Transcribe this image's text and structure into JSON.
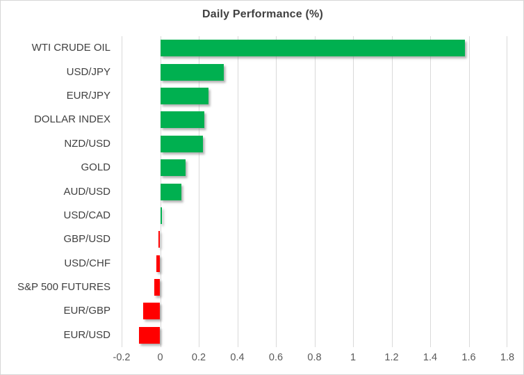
{
  "chart_data": {
    "type": "bar",
    "orientation": "horizontal",
    "title": "Daily Performance (%)",
    "categories": [
      "WTI CRUDE OIL",
      "USD/JPY",
      "EUR/JPY",
      "DOLLAR INDEX",
      "NZD/USD",
      "GOLD",
      "AUD/USD",
      "USD/CAD",
      "GBP/USD",
      "USD/CHF",
      "S&P 500 FUTURES",
      "EUR/GBP",
      "EUR/USD"
    ],
    "values": [
      1.58,
      0.33,
      0.25,
      0.23,
      0.22,
      0.13,
      0.11,
      0.01,
      -0.01,
      -0.02,
      -0.03,
      -0.09,
      -0.11
    ],
    "xlim": [
      -0.2,
      1.8
    ],
    "x_ticks": [
      -0.2,
      0,
      0.2,
      0.4,
      0.6,
      0.8,
      1,
      1.2,
      1.4,
      1.6,
      1.8
    ],
    "x_tick_labels": [
      "-0.2",
      "0",
      "0.2",
      "0.4",
      "0.6",
      "0.8",
      "1",
      "1.2",
      "1.4",
      "1.6",
      "1.8"
    ],
    "grid": true,
    "legend": false,
    "colors": {
      "positive_bar": "#00B050",
      "negative_bar": "#FF0000",
      "gridline": "#D9D9D9",
      "title_text": "#404040",
      "category_text": "#404040",
      "tick_text": "#595959"
    }
  }
}
